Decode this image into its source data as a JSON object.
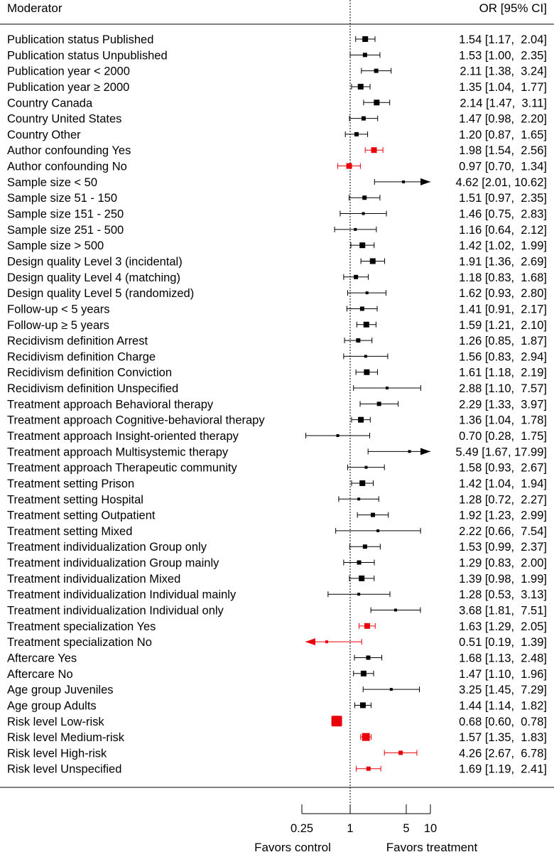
{
  "chart_data": {
    "type": "forest",
    "header_left": "Moderator",
    "header_right": "OR [95% CI]",
    "x_scale": "log",
    "xlim": [
      0.25,
      10
    ],
    "reference_line": 1,
    "x_ticks": [
      {
        "value": 0.25,
        "label": "0.25"
      },
      {
        "value": 1,
        "label": "1"
      },
      {
        "value": 5,
        "label": "5"
      },
      {
        "value": 10,
        "label": "10"
      }
    ],
    "favors_left": "Favors control",
    "favors_right": "Favors treatment",
    "colors": {
      "default": "#000000",
      "highlight": "#e8000b"
    },
    "rows": [
      {
        "label": "Publication status Published",
        "or": 1.54,
        "lo": 1.17,
        "hi": 2.04,
        "text": "1.54 [1.17,  2.04]",
        "color": "black",
        "weight": 3
      },
      {
        "label": "Publication status Unpublished",
        "or": 1.53,
        "lo": 1.0,
        "hi": 2.35,
        "text": "1.53 [1.00,  2.35]",
        "color": "black",
        "weight": 2
      },
      {
        "label": "Publication year < 2000",
        "or": 2.11,
        "lo": 1.38,
        "hi": 3.24,
        "text": "2.11 [1.38,  3.24]",
        "color": "black",
        "weight": 2
      },
      {
        "label": "Publication year ≥ 2000",
        "or": 1.35,
        "lo": 1.04,
        "hi": 1.77,
        "text": "1.35 [1.04,  1.77]",
        "color": "black",
        "weight": 3
      },
      {
        "label": "Country Canada",
        "or": 2.14,
        "lo": 1.47,
        "hi": 3.11,
        "text": "2.14 [1.47,  3.11]",
        "color": "black",
        "weight": 3
      },
      {
        "label": "Country United States",
        "or": 1.47,
        "lo": 0.98,
        "hi": 2.2,
        "text": "1.47 [0.98,  2.20]",
        "color": "black",
        "weight": 2
      },
      {
        "label": "Country Other",
        "or": 1.2,
        "lo": 0.87,
        "hi": 1.65,
        "text": "1.20 [0.87,  1.65]",
        "color": "black",
        "weight": 2
      },
      {
        "label": "Author confounding Yes",
        "or": 1.98,
        "lo": 1.54,
        "hi": 2.56,
        "text": "1.98 [1.54,  2.56]",
        "color": "red",
        "weight": 3
      },
      {
        "label": "Author confounding No",
        "or": 0.97,
        "lo": 0.7,
        "hi": 1.34,
        "text": "0.97 [0.70,  1.34]",
        "color": "red",
        "weight": 3
      },
      {
        "label": "Sample size < 50",
        "or": 4.62,
        "lo": 2.01,
        "hi": 10.62,
        "text": "4.62 [2.01, 10.62]",
        "color": "black",
        "weight": 1
      },
      {
        "label": "Sample size 51 - 150",
        "or": 1.51,
        "lo": 0.97,
        "hi": 2.35,
        "text": "1.51 [0.97,  2.35]",
        "color": "black",
        "weight": 2
      },
      {
        "label": "Sample size 151 - 250",
        "or": 1.46,
        "lo": 0.75,
        "hi": 2.83,
        "text": "1.46 [0.75,  2.83]",
        "color": "black",
        "weight": 1
      },
      {
        "label": "Sample size 251 - 500",
        "or": 1.16,
        "lo": 0.64,
        "hi": 2.12,
        "text": "1.16 [0.64,  2.12]",
        "color": "black",
        "weight": 1
      },
      {
        "label": "Sample size > 500",
        "or": 1.42,
        "lo": 1.02,
        "hi": 1.99,
        "text": "1.42 [1.02,  1.99]",
        "color": "black",
        "weight": 3
      },
      {
        "label": "Design quality Level 3 (incidental)",
        "or": 1.91,
        "lo": 1.36,
        "hi": 2.69,
        "text": "1.91 [1.36,  2.69]",
        "color": "black",
        "weight": 3
      },
      {
        "label": "Design quality Level 4 (matching)",
        "or": 1.18,
        "lo": 0.83,
        "hi": 1.68,
        "text": "1.18 [0.83,  1.68]",
        "color": "black",
        "weight": 2
      },
      {
        "label": "Design quality Level 5 (randomized)",
        "or": 1.62,
        "lo": 0.93,
        "hi": 2.8,
        "text": "1.62 [0.93,  2.80]",
        "color": "black",
        "weight": 1
      },
      {
        "label": "Follow-up < 5 years",
        "or": 1.41,
        "lo": 0.91,
        "hi": 2.17,
        "text": "1.41 [0.91,  2.17]",
        "color": "black",
        "weight": 2
      },
      {
        "label": "Follow-up ≥ 5 years",
        "or": 1.59,
        "lo": 1.21,
        "hi": 2.1,
        "text": "1.59 [1.21,  2.10]",
        "color": "black",
        "weight": 3
      },
      {
        "label": "Recidivism definition Arrest",
        "or": 1.26,
        "lo": 0.85,
        "hi": 1.87,
        "text": "1.26 [0.85,  1.87]",
        "color": "black",
        "weight": 2
      },
      {
        "label": "Recidivism definition Charge",
        "or": 1.56,
        "lo": 0.83,
        "hi": 2.94,
        "text": "1.56 [0.83,  2.94]",
        "color": "black",
        "weight": 1
      },
      {
        "label": "Recidivism definition Conviction",
        "or": 1.61,
        "lo": 1.18,
        "hi": 2.19,
        "text": "1.61 [1.18,  2.19]",
        "color": "black",
        "weight": 3
      },
      {
        "label": "Recidivism definition Unspecified",
        "or": 2.88,
        "lo": 1.1,
        "hi": 7.57,
        "text": "2.88 [1.10,  7.57]",
        "color": "black",
        "weight": 1
      },
      {
        "label": "Treatment approach Behavioral therapy",
        "or": 2.29,
        "lo": 1.33,
        "hi": 3.97,
        "text": "2.29 [1.33,  3.97]",
        "color": "black",
        "weight": 2
      },
      {
        "label": "Treatment approach Cognitive-behavioral therapy",
        "or": 1.36,
        "lo": 1.04,
        "hi": 1.78,
        "text": "1.36 [1.04,  1.78]",
        "color": "black",
        "weight": 3
      },
      {
        "label": "Treatment approach Insight-oriented therapy",
        "or": 0.7,
        "lo": 0.28,
        "hi": 1.75,
        "text": "0.70 [0.28,  1.75]",
        "color": "black",
        "weight": 1
      },
      {
        "label": "Treatment approach Multisystemic therapy",
        "or": 5.49,
        "lo": 1.67,
        "hi": 17.99,
        "text": "5.49 [1.67, 17.99]",
        "color": "black",
        "weight": 1
      },
      {
        "label": "Treatment approach Therapeutic community",
        "or": 1.58,
        "lo": 0.93,
        "hi": 2.67,
        "text": "1.58 [0.93,  2.67]",
        "color": "black",
        "weight": 1
      },
      {
        "label": "Treatment setting Prison",
        "or": 1.42,
        "lo": 1.04,
        "hi": 1.94,
        "text": "1.42 [1.04,  1.94]",
        "color": "black",
        "weight": 3
      },
      {
        "label": "Treatment setting Hospital",
        "or": 1.28,
        "lo": 0.72,
        "hi": 2.27,
        "text": "1.28 [0.72,  2.27]",
        "color": "black",
        "weight": 1
      },
      {
        "label": "Treatment setting Outpatient",
        "or": 1.92,
        "lo": 1.23,
        "hi": 2.99,
        "text": "1.92 [1.23,  2.99]",
        "color": "black",
        "weight": 2
      },
      {
        "label": "Treatment setting Mixed",
        "or": 2.22,
        "lo": 0.66,
        "hi": 7.54,
        "text": "2.22 [0.66,  7.54]",
        "color": "black",
        "weight": 1
      },
      {
        "label": "Treatment individualization Group only",
        "or": 1.53,
        "lo": 0.99,
        "hi": 2.37,
        "text": "1.53 [0.99,  2.37]",
        "color": "black",
        "weight": 2
      },
      {
        "label": "Treatment individualization Group mainly",
        "or": 1.29,
        "lo": 0.83,
        "hi": 2.0,
        "text": "1.29 [0.83,  2.00]",
        "color": "black",
        "weight": 2
      },
      {
        "label": "Treatment individualization Mixed",
        "or": 1.39,
        "lo": 0.98,
        "hi": 1.99,
        "text": "1.39 [0.98,  1.99]",
        "color": "black",
        "weight": 3
      },
      {
        "label": "Treatment individualization Individual mainly",
        "or": 1.28,
        "lo": 0.53,
        "hi": 3.13,
        "text": "1.28 [0.53,  3.13]",
        "color": "black",
        "weight": 1
      },
      {
        "label": "Treatment individualization Individual only",
        "or": 3.68,
        "lo": 1.81,
        "hi": 7.51,
        "text": "3.68 [1.81,  7.51]",
        "color": "black",
        "weight": 1
      },
      {
        "label": "Treatment specialization Yes",
        "or": 1.63,
        "lo": 1.29,
        "hi": 2.05,
        "text": "1.63 [1.29,  2.05]",
        "color": "red",
        "weight": 3
      },
      {
        "label": "Treatment specialization No",
        "or": 0.51,
        "lo": 0.19,
        "hi": 1.39,
        "text": "0.51 [0.19,  1.39]",
        "color": "red",
        "weight": 1
      },
      {
        "label": "Aftercare Yes",
        "or": 1.68,
        "lo": 1.13,
        "hi": 2.48,
        "text": "1.68 [1.13,  2.48]",
        "color": "black",
        "weight": 2
      },
      {
        "label": "Aftercare No",
        "or": 1.47,
        "lo": 1.1,
        "hi": 1.96,
        "text": "1.47 [1.10,  1.96]",
        "color": "black",
        "weight": 3
      },
      {
        "label": "Age group Juveniles",
        "or": 3.25,
        "lo": 1.45,
        "hi": 7.29,
        "text": "3.25 [1.45,  7.29]",
        "color": "black",
        "weight": 1
      },
      {
        "label": "Age group Adults",
        "or": 1.44,
        "lo": 1.14,
        "hi": 1.82,
        "text": "1.44 [1.14,  1.82]",
        "color": "black",
        "weight": 3
      },
      {
        "label": "Risk level Low-risk",
        "or": 0.68,
        "lo": 0.6,
        "hi": 0.78,
        "text": "0.68 [0.60,  0.78]",
        "color": "red",
        "weight": 5
      },
      {
        "label": "Risk level Medium-risk",
        "or": 1.57,
        "lo": 1.35,
        "hi": 1.83,
        "text": "1.57 [1.35,  1.83]",
        "color": "red",
        "weight": 4
      },
      {
        "label": "Risk level High-risk",
        "or": 4.26,
        "lo": 2.67,
        "hi": 6.78,
        "text": "4.26 [2.67,  6.78]",
        "color": "red",
        "weight": 2
      },
      {
        "label": "Risk level Unspecified",
        "or": 1.69,
        "lo": 1.19,
        "hi": 2.41,
        "text": "1.69 [1.19,  2.41]",
        "color": "red",
        "weight": 2
      }
    ]
  }
}
